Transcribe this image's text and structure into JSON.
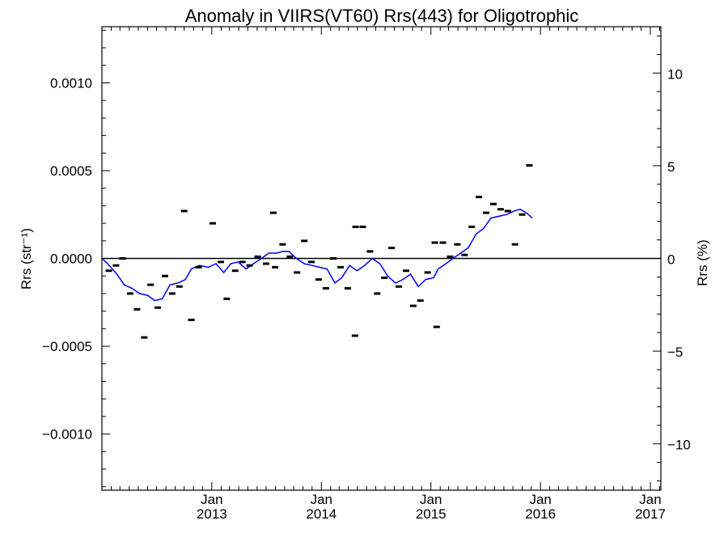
{
  "chart_data": {
    "type": "scatter",
    "title": "Anomaly in VIIRS(VT60) Rrs(443) for Oligotrophic",
    "ylabel_left": "Rrs (str⁻¹)",
    "ylabel_right": "Rrs (%)",
    "xlim": [
      "2012-01-01",
      "2017-02-05"
    ],
    "ylim": [
      -0.00132,
      0.00132
    ],
    "ylim_right": [
      -12.5,
      12.5
    ],
    "x_ticks": [
      {
        "x": "2013-01-01",
        "month": "Jan",
        "year": "2013"
      },
      {
        "x": "2014-01-01",
        "month": "Jan",
        "year": "2014"
      },
      {
        "x": "2015-01-01",
        "month": "Jan",
        "year": "2015"
      },
      {
        "x": "2016-01-01",
        "month": "Jan",
        "year": "2016"
      },
      {
        "x": "2017-01-01",
        "month": "Jan",
        "year": "2017"
      }
    ],
    "y_ticks_left": [
      {
        "value": 0.001,
        "label": "0.0010"
      },
      {
        "value": 0.0005,
        "label": "0.0005"
      },
      {
        "value": 0.0,
        "label": "0.0000"
      },
      {
        "value": -0.0005,
        "label": "−0.0005"
      },
      {
        "value": -0.001,
        "label": "−0.0010"
      }
    ],
    "y_ticks_right": [
      {
        "value": 10,
        "label": "10"
      },
      {
        "value": 5,
        "label": "5"
      },
      {
        "value": 0,
        "label": "0"
      },
      {
        "value": -5,
        "label": "−5"
      },
      {
        "value": -10,
        "label": "−10"
      }
    ],
    "reference_line": 0,
    "series": [
      {
        "kind": "points",
        "color": "#000000",
        "points": [
          {
            "x": "2012-01-24",
            "y": -7e-05
          },
          {
            "x": "2012-02-17",
            "y": -4e-05
          },
          {
            "x": "2012-03-10",
            "y": 0.0
          },
          {
            "x": "2012-04-04",
            "y": -0.0002
          },
          {
            "x": "2012-04-27",
            "y": -0.00029
          },
          {
            "x": "2012-05-21",
            "y": -0.00045
          },
          {
            "x": "2012-06-11",
            "y": -0.00015
          },
          {
            "x": "2012-07-05",
            "y": -0.00028
          },
          {
            "x": "2012-07-29",
            "y": -0.0001
          },
          {
            "x": "2012-08-22",
            "y": -0.0002
          },
          {
            "x": "2012-09-15",
            "y": -0.00016
          },
          {
            "x": "2012-10-01",
            "y": 0.00027
          },
          {
            "x": "2012-10-25",
            "y": -0.00035
          },
          {
            "x": "2012-11-18",
            "y": -5e-05
          },
          {
            "x": "2013-01-04",
            "y": 0.0002
          },
          {
            "x": "2013-01-31",
            "y": -2e-05
          },
          {
            "x": "2013-02-20",
            "y": -0.00023
          },
          {
            "x": "2013-03-20",
            "y": -7e-05
          },
          {
            "x": "2013-04-13",
            "y": -2e-05
          },
          {
            "x": "2013-05-07",
            "y": -4e-05
          },
          {
            "x": "2013-06-03",
            "y": 1e-05
          },
          {
            "x": "2013-07-01",
            "y": -3e-05
          },
          {
            "x": "2013-07-25",
            "y": 0.00026
          },
          {
            "x": "2013-07-31",
            "y": -5e-05
          },
          {
            "x": "2013-08-25",
            "y": 8e-05
          },
          {
            "x": "2013-09-18",
            "y": 1e-05
          },
          {
            "x": "2013-10-12",
            "y": -8e-05
          },
          {
            "x": "2013-11-05",
            "y": 0.0001
          },
          {
            "x": "2013-11-29",
            "y": -2e-05
          },
          {
            "x": "2013-12-23",
            "y": -0.00012
          },
          {
            "x": "2014-01-16",
            "y": -0.00017
          },
          {
            "x": "2014-02-10",
            "y": 0.0
          },
          {
            "x": "2014-03-06",
            "y": -5e-05
          },
          {
            "x": "2014-03-30",
            "y": -0.00017
          },
          {
            "x": "2014-04-23",
            "y": -0.00044
          },
          {
            "x": "2014-04-25",
            "y": 0.00018
          },
          {
            "x": "2014-05-19",
            "y": 0.00018
          },
          {
            "x": "2014-06-12",
            "y": 4e-05
          },
          {
            "x": "2014-07-06",
            "y": -0.0002
          },
          {
            "x": "2014-07-30",
            "y": -0.00011
          },
          {
            "x": "2014-08-23",
            "y": 6e-05
          },
          {
            "x": "2014-09-16",
            "y": -0.00016
          },
          {
            "x": "2014-10-10",
            "y": -7e-05
          },
          {
            "x": "2014-11-03",
            "y": -0.00027
          },
          {
            "x": "2014-11-27",
            "y": -0.00024
          },
          {
            "x": "2014-12-21",
            "y": -8e-05
          },
          {
            "x": "2015-01-14",
            "y": 9e-05
          },
          {
            "x": "2015-01-20",
            "y": -0.00039
          },
          {
            "x": "2015-02-10",
            "y": 9e-05
          },
          {
            "x": "2015-03-06",
            "y": 1e-05
          },
          {
            "x": "2015-03-30",
            "y": 8e-05
          },
          {
            "x": "2015-04-23",
            "y": 2e-05
          },
          {
            "x": "2015-05-17",
            "y": 0.00018
          },
          {
            "x": "2015-06-10",
            "y": 0.00035
          },
          {
            "x": "2015-07-04",
            "y": 0.00026
          },
          {
            "x": "2015-07-28",
            "y": 0.00031
          },
          {
            "x": "2015-08-21",
            "y": 0.00028
          },
          {
            "x": "2015-09-14",
            "y": 0.00027
          },
          {
            "x": "2015-10-08",
            "y": 8e-05
          },
          {
            "x": "2015-11-01",
            "y": 0.00025
          },
          {
            "x": "2015-11-25",
            "y": 0.00053
          }
        ]
      },
      {
        "kind": "line",
        "color": "#0000ff",
        "points": [
          {
            "x": "2012-01-01",
            "y": 0.0
          },
          {
            "x": "2012-01-20",
            "y": -3e-05
          },
          {
            "x": "2012-02-20",
            "y": -9e-05
          },
          {
            "x": "2012-03-15",
            "y": -0.00015
          },
          {
            "x": "2012-04-10",
            "y": -0.00017
          },
          {
            "x": "2012-05-05",
            "y": -0.0002
          },
          {
            "x": "2012-06-01",
            "y": -0.00021
          },
          {
            "x": "2012-06-25",
            "y": -0.00024
          },
          {
            "x": "2012-07-20",
            "y": -0.00023
          },
          {
            "x": "2012-08-15",
            "y": -0.00015
          },
          {
            "x": "2012-09-10",
            "y": -0.00014
          },
          {
            "x": "2012-10-05",
            "y": -0.00012
          },
          {
            "x": "2012-10-25",
            "y": -6e-05
          },
          {
            "x": "2012-11-20",
            "y": -4e-05
          },
          {
            "x": "2012-12-20",
            "y": -5e-05
          },
          {
            "x": "2013-01-15",
            "y": -3e-05
          },
          {
            "x": "2013-02-10",
            "y": -8e-05
          },
          {
            "x": "2013-03-05",
            "y": -3e-05
          },
          {
            "x": "2013-03-30",
            "y": -2e-05
          },
          {
            "x": "2013-04-25",
            "y": -6e-05
          },
          {
            "x": "2013-05-20",
            "y": -3e-05
          },
          {
            "x": "2013-06-15",
            "y": 0.0
          },
          {
            "x": "2013-07-10",
            "y": 3e-05
          },
          {
            "x": "2013-08-05",
            "y": 3e-05
          },
          {
            "x": "2013-08-25",
            "y": 4e-05
          },
          {
            "x": "2013-09-15",
            "y": 4e-05
          },
          {
            "x": "2013-10-10",
            "y": -0.0
          },
          {
            "x": "2013-11-05",
            "y": -3e-05
          },
          {
            "x": "2013-12-01",
            "y": -4e-05
          },
          {
            "x": "2013-12-25",
            "y": -5e-05
          },
          {
            "x": "2014-01-20",
            "y": -6e-05
          },
          {
            "x": "2014-02-15",
            "y": -0.00014
          },
          {
            "x": "2014-03-10",
            "y": -0.00011
          },
          {
            "x": "2014-04-05",
            "y": -4e-05
          },
          {
            "x": "2014-04-30",
            "y": -7e-05
          },
          {
            "x": "2014-05-25",
            "y": -4e-05
          },
          {
            "x": "2014-06-20",
            "y": -0.0
          },
          {
            "x": "2014-07-15",
            "y": -3e-05
          },
          {
            "x": "2014-08-10",
            "y": -0.0001
          },
          {
            "x": "2014-09-05",
            "y": -0.00014
          },
          {
            "x": "2014-09-30",
            "y": -0.00012
          },
          {
            "x": "2014-10-25",
            "y": -9e-05
          },
          {
            "x": "2014-11-20",
            "y": -0.00016
          },
          {
            "x": "2014-12-15",
            "y": -0.00012
          },
          {
            "x": "2015-01-10",
            "y": -0.00011
          },
          {
            "x": "2015-01-25",
            "y": -6e-05
          },
          {
            "x": "2015-02-20",
            "y": -3e-05
          },
          {
            "x": "2015-03-15",
            "y": 0.0
          },
          {
            "x": "2015-04-10",
            "y": 3e-05
          },
          {
            "x": "2015-05-05",
            "y": 6e-05
          },
          {
            "x": "2015-06-01",
            "y": 0.00014
          },
          {
            "x": "2015-06-25",
            "y": 0.00017
          },
          {
            "x": "2015-07-20",
            "y": 0.00023
          },
          {
            "x": "2015-08-15",
            "y": 0.00024
          },
          {
            "x": "2015-09-10",
            "y": 0.00025
          },
          {
            "x": "2015-10-05",
            "y": 0.00027
          },
          {
            "x": "2015-10-25",
            "y": 0.00028
          },
          {
            "x": "2015-11-15",
            "y": 0.00026
          },
          {
            "x": "2015-12-05",
            "y": 0.00023
          }
        ]
      }
    ]
  }
}
